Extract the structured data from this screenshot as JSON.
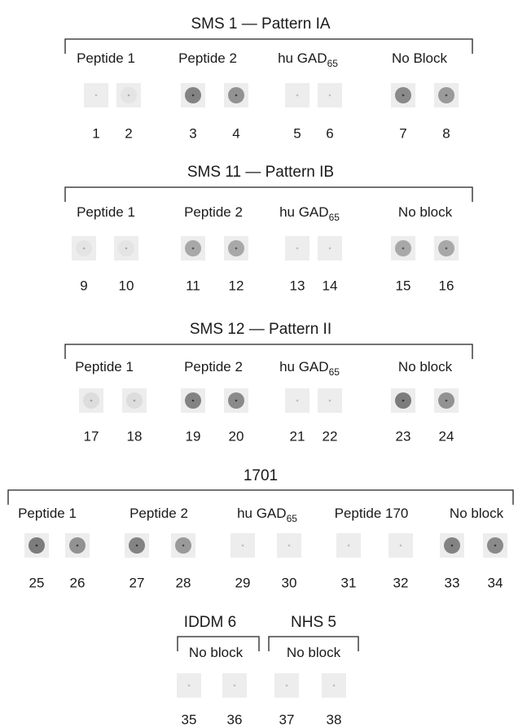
{
  "panels": [
    {
      "title": "SMS 1 — Pattern IA",
      "groups": [
        {
          "label": "Peptide 1",
          "lanes": [
            1,
            2
          ]
        },
        {
          "label": "Peptide 2",
          "lanes": [
            3,
            4
          ]
        },
        {
          "label": "hu GAD",
          "subscript": "65",
          "lanes": [
            5,
            6
          ]
        },
        {
          "label": "No Block",
          "lanes": [
            7,
            8
          ]
        }
      ]
    },
    {
      "title": "SMS 11 — Pattern IB",
      "groups": [
        {
          "label": "Peptide 1",
          "lanes": [
            9,
            10
          ]
        },
        {
          "label": "Peptide 2",
          "lanes": [
            11,
            12
          ]
        },
        {
          "label": "hu GAD",
          "subscript": "65",
          "lanes": [
            13,
            14
          ]
        },
        {
          "label": "No block",
          "lanes": [
            15,
            16
          ]
        }
      ]
    },
    {
      "title": "SMS 12 — Pattern II",
      "groups": [
        {
          "label": "Peptide 1",
          "lanes": [
            17,
            18
          ]
        },
        {
          "label": "Peptide 2",
          "lanes": [
            19,
            20
          ]
        },
        {
          "label": "hu GAD",
          "subscript": "65",
          "lanes": [
            21,
            22
          ]
        },
        {
          "label": "No block",
          "lanes": [
            23,
            24
          ]
        }
      ]
    },
    {
      "title": "1701",
      "groups": [
        {
          "label": "Peptide 1",
          "lanes": [
            25,
            26
          ]
        },
        {
          "label": "Peptide 2",
          "lanes": [
            27,
            28
          ]
        },
        {
          "label": "hu GAD",
          "subscript": "65",
          "lanes": [
            29,
            30
          ]
        },
        {
          "label": "Peptide 170",
          "lanes": [
            31,
            32
          ]
        },
        {
          "label": "No block",
          "lanes": [
            33,
            34
          ]
        }
      ]
    },
    {
      "title": "IDDM 6",
      "groups": [
        {
          "label": "No block",
          "lanes": [
            35,
            36
          ]
        }
      ]
    },
    {
      "title": "NHS 5",
      "groups": [
        {
          "label": "No block",
          "lanes": [
            37,
            38
          ]
        }
      ]
    }
  ]
}
